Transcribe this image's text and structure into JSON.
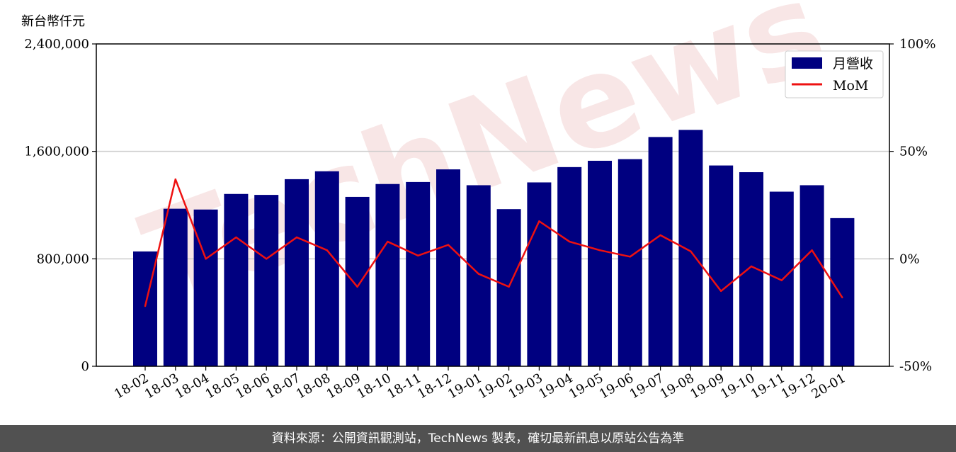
{
  "unit_label": "新台幣仟元",
  "footer": {
    "text": "資料來源：公開資訊觀測站，TechNews 製表，確切最新訊息以原站公告為準"
  },
  "watermark": {
    "text": "TechNews",
    "color": "#f6dede"
  },
  "colors": {
    "bar": "#000080",
    "line": "#ee1111",
    "grid": "#cccccc",
    "footer_bg": "#515151"
  },
  "chart_data": {
    "type": "bar",
    "categories": [
      "18-02",
      "18-03",
      "18-04",
      "18-05",
      "18-06",
      "18-07",
      "18-08",
      "18-09",
      "18-10",
      "18-11",
      "18-12",
      "19-01",
      "19-02",
      "19-03",
      "19-04",
      "19-05",
      "19-06",
      "19-07",
      "19-08",
      "19-09",
      "19-10",
      "19-11",
      "19-12",
      "20-01"
    ],
    "series": [
      {
        "name": "月營收",
        "type": "bar",
        "axis": "left",
        "values": [
          855000,
          1173000,
          1167000,
          1283000,
          1276000,
          1393000,
          1452000,
          1261000,
          1357000,
          1372000,
          1466000,
          1348000,
          1170000,
          1369000,
          1483000,
          1530000,
          1542000,
          1707000,
          1760000,
          1495000,
          1445000,
          1300000,
          1348000,
          1103000
        ]
      },
      {
        "name": "MoM",
        "type": "line",
        "axis": "right",
        "values": [
          -22,
          37,
          0,
          10,
          0,
          10,
          4,
          -13,
          8,
          1.5,
          6.5,
          -7,
          -13,
          17.5,
          8,
          4,
          1,
          11,
          3.5,
          -15,
          -3.5,
          -10,
          4,
          -18
        ]
      }
    ],
    "y_left": {
      "ylim": [
        0,
        2400000
      ],
      "ticks": [
        0,
        800000,
        1600000,
        2400000
      ],
      "tick_labels": [
        "0",
        "800,000",
        "1,600,000",
        "2,400,000"
      ]
    },
    "y_right": {
      "ylim": [
        -50,
        100
      ],
      "ticks": [
        -50,
        0,
        50,
        100
      ],
      "tick_labels": [
        "-50%",
        "0%",
        "50%",
        "100%"
      ]
    },
    "grid": "horizontal",
    "legend_position": "top-right"
  }
}
